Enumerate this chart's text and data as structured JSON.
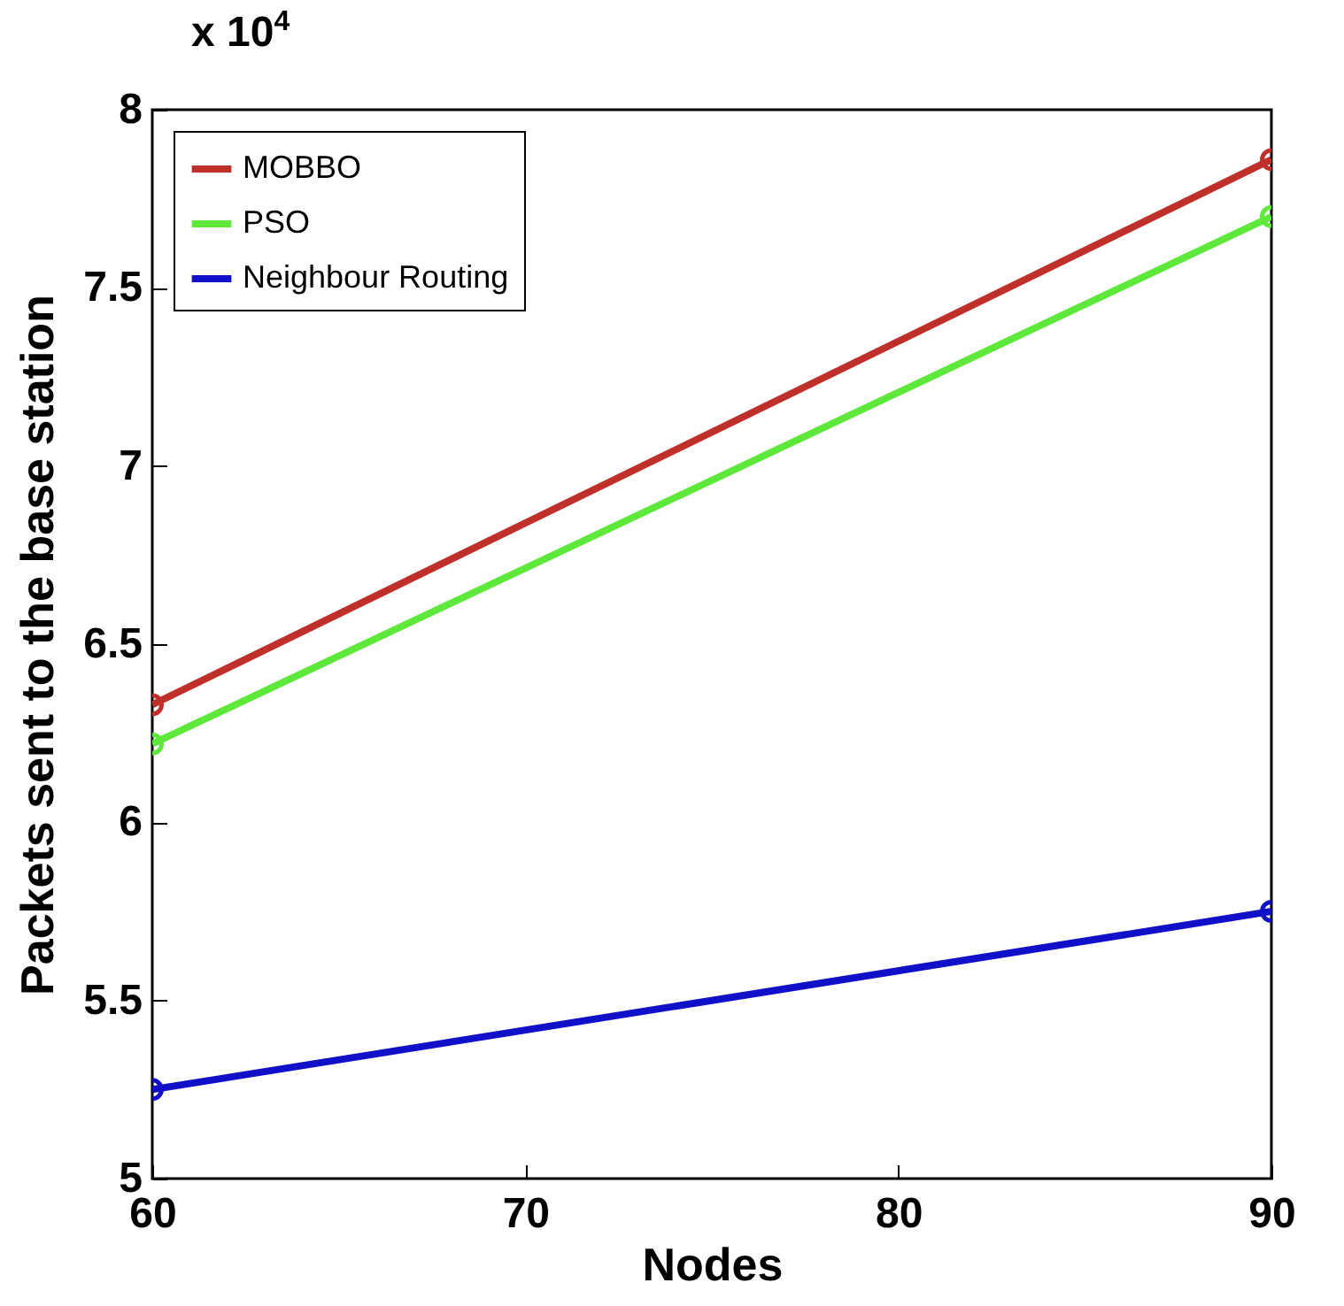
{
  "chart_data": {
    "type": "line",
    "xlabel": "Nodes",
    "ylabel": "Packets sent to the base station",
    "annotations": [
      "x 10$^{4}$"
    ],
    "x": [
      60,
      90
    ],
    "series": [
      {
        "name": "MOBBO",
        "color": "#c0302a",
        "values": [
          6.33,
          7.86
        ]
      },
      {
        "name": "PSO",
        "color": "#5ee83c",
        "values": [
          6.22,
          7.7
        ]
      },
      {
        "name": "Neighbour Routing",
        "color": "#1010c8",
        "values": [
          5.25,
          5.75
        ]
      }
    ],
    "xlim": [
      60,
      90
    ],
    "xticks": [
      60,
      70,
      80,
      90
    ],
    "ylim": [
      5,
      8
    ],
    "yticks": [
      5,
      5.5,
      6,
      6.5,
      7,
      7.5,
      8
    ],
    "grid": false,
    "legend": "top left",
    "marker": "circle",
    "line_style": "solid"
  }
}
